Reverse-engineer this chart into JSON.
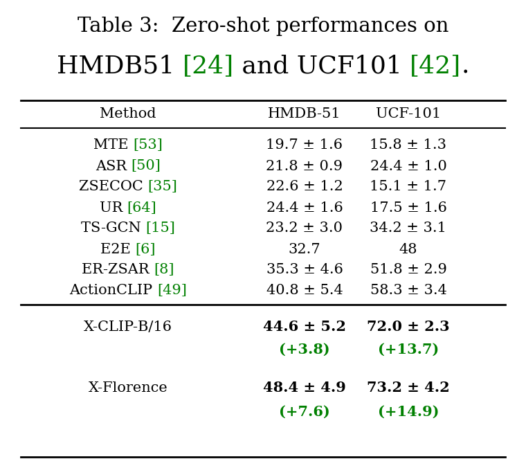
{
  "title_line1": "Table 3:  Zero-shot performances on",
  "title_line2_parts": [
    {
      "text": "HMDB51 ",
      "color": "#000000"
    },
    {
      "text": "[24]",
      "color": "#008000"
    },
    {
      "text": " and UCF101 ",
      "color": "#000000"
    },
    {
      "text": "[42]",
      "color": "#008000"
    },
    {
      "text": ".",
      "color": "#000000"
    }
  ],
  "col_headers": [
    "Method",
    "HMDB-51",
    "UCF-101"
  ],
  "rows": [
    {
      "method_black": "MTE ",
      "method_green": "[53]",
      "hmdb": "19.7 ± 1.6",
      "ucf": "15.8 ± 1.3"
    },
    {
      "method_black": "ASR ",
      "method_green": "[50]",
      "hmdb": "21.8 ± 0.9",
      "ucf": "24.4 ± 1.0"
    },
    {
      "method_black": "ZSECOC ",
      "method_green": "[35]",
      "hmdb": "22.6 ± 1.2",
      "ucf": "15.1 ± 1.7"
    },
    {
      "method_black": "UR ",
      "method_green": "[64]",
      "hmdb": "24.4 ± 1.6",
      "ucf": "17.5 ± 1.6"
    },
    {
      "method_black": "TS-GCN ",
      "method_green": "[15]",
      "hmdb": "23.2 ± 3.0",
      "ucf": "34.2 ± 3.1"
    },
    {
      "method_black": "E2E ",
      "method_green": "[6]",
      "hmdb": "32.7",
      "ucf": "48"
    },
    {
      "method_black": "ER-ZSAR ",
      "method_green": "[8]",
      "hmdb": "35.3 ± 4.6",
      "ucf": "51.8 ± 2.9"
    },
    {
      "method_black": "ActionCLIP ",
      "method_green": "[49]",
      "hmdb": "40.8 ± 5.4",
      "ucf": "58.3 ± 3.4"
    }
  ],
  "ours_rows": [
    {
      "method": "X-CLIP-B/16",
      "hmdb_main": "44.6 ± 5.2",
      "ucf_main": "72.0 ± 2.3",
      "hmdb_delta": "(+3.8)",
      "ucf_delta": "(+13.7)"
    },
    {
      "method": "X-Florence",
      "hmdb_main": "48.4 ± 4.9",
      "ucf_main": "73.2 ± 4.2",
      "hmdb_delta": "(+7.6)",
      "ucf_delta": "(+14.9)"
    }
  ],
  "green_color": "#008000",
  "black_color": "#000000",
  "bg_color": "#ffffff",
  "title1_fontsize": 21,
  "title2_fontsize": 26,
  "header_fontsize": 15,
  "row_fontsize": 15,
  "bold_fontsize": 15
}
